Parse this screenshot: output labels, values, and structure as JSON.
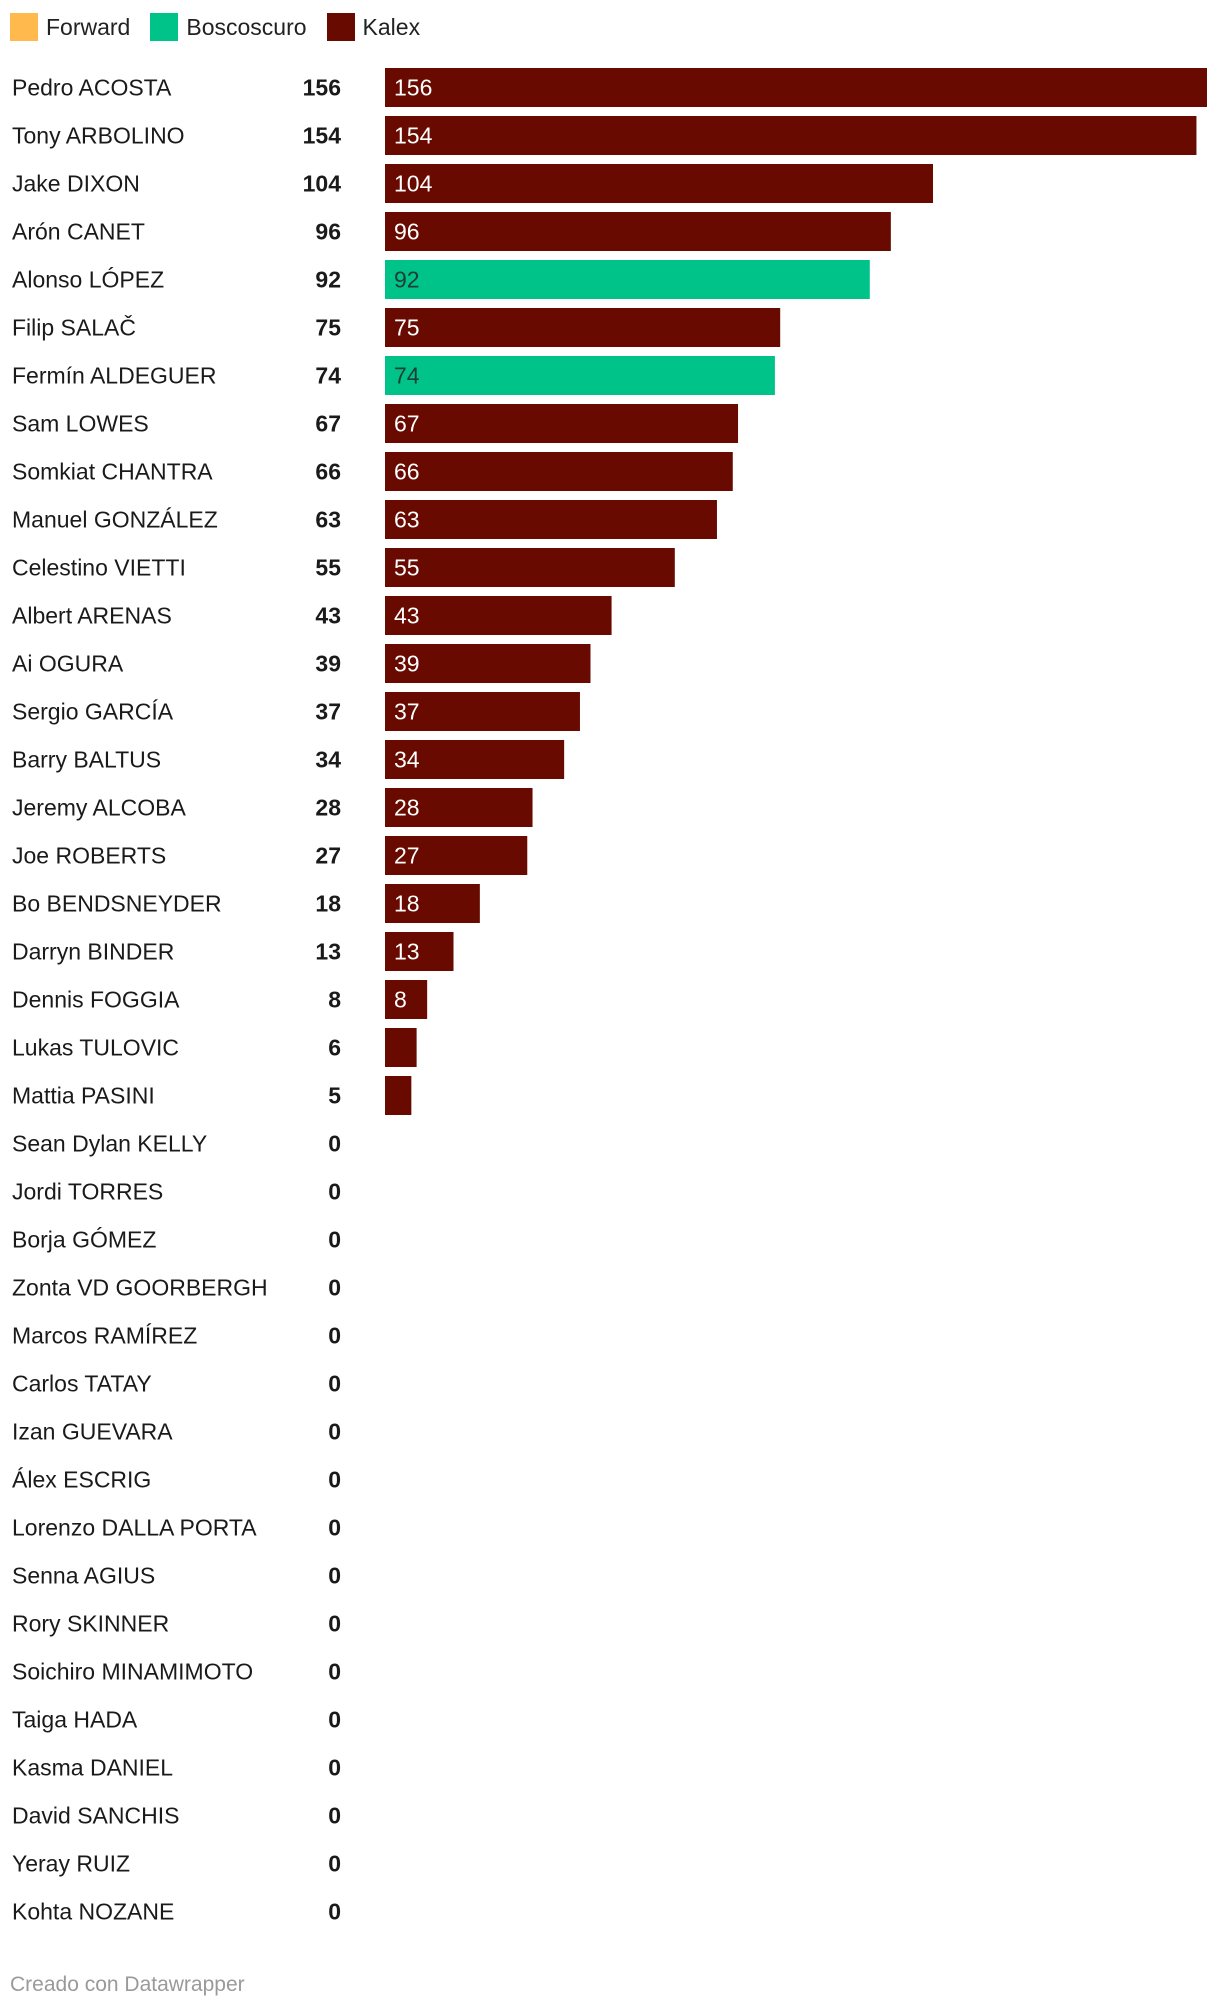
{
  "legend": [
    {
      "label": "Forward",
      "color": "#ffb94d"
    },
    {
      "label": "Boscoscuro",
      "color": "#00c389"
    },
    {
      "label": "Kalex",
      "color": "#680a00"
    }
  ],
  "credit": "Creado con Datawrapper",
  "chart_data": {
    "type": "bar",
    "orientation": "horizontal",
    "title": "",
    "xlim": [
      0,
      156
    ],
    "categories": [
      "Pedro ACOSTA",
      "Tony ARBOLINO",
      "Jake DIXON",
      "Arón CANET",
      "Alonso LÓPEZ",
      "Filip SALAČ",
      "Fermín ALDEGUER",
      "Sam LOWES",
      "Somkiat CHANTRA",
      "Manuel GONZÁLEZ",
      "Celestino VIETTI",
      "Albert ARENAS",
      "Ai OGURA",
      "Sergio GARCÍA",
      "Barry BALTUS",
      "Jeremy ALCOBA",
      "Joe ROBERTS",
      "Bo BENDSNEYDER",
      "Darryn BINDER",
      "Dennis FOGGIA",
      "Lukas TULOVIC",
      "Mattia PASINI",
      "Sean Dylan KELLY",
      "Jordi TORRES",
      "Borja GÓMEZ",
      "Zonta VD GOORBERGH",
      "Marcos RAMÍREZ",
      "Carlos TATAY",
      "Izan GUEVARA",
      "Álex ESCRIG",
      "Lorenzo DALLA PORTA",
      "Senna AGIUS",
      "Rory SKINNER",
      "Soichiro MINAMIMOTO",
      "Taiga HADA",
      "Kasma DANIEL",
      "David SANCHIS",
      "Yeray RUIZ",
      "Kohta NOZANE"
    ],
    "values": [
      156,
      154,
      104,
      96,
      92,
      75,
      74,
      67,
      66,
      63,
      55,
      43,
      39,
      37,
      34,
      28,
      27,
      18,
      13,
      8,
      6,
      5,
      0,
      0,
      0,
      0,
      0,
      0,
      0,
      0,
      0,
      0,
      0,
      0,
      0,
      0,
      0,
      0,
      0
    ],
    "constructors": [
      "Kalex",
      "Kalex",
      "Kalex",
      "Kalex",
      "Boscoscuro",
      "Kalex",
      "Boscoscuro",
      "Kalex",
      "Kalex",
      "Kalex",
      "Kalex",
      "Kalex",
      "Kalex",
      "Kalex",
      "Kalex",
      "Kalex",
      "Kalex",
      "Kalex",
      "Kalex",
      "Kalex",
      "Kalex",
      "Kalex",
      "",
      "",
      "",
      "",
      "",
      "",
      "",
      "",
      "",
      "",
      "",
      "",
      "",
      "",
      "",
      "",
      ""
    ],
    "bar_label_min_value": 8
  }
}
